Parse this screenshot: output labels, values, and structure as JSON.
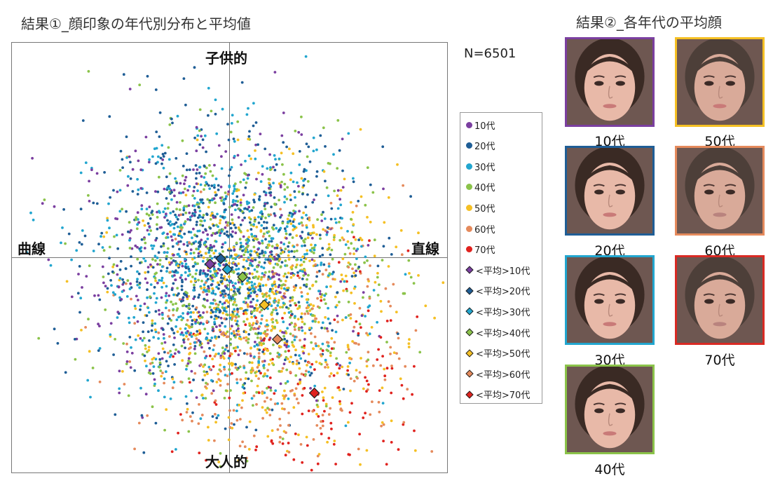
{
  "header": {
    "title_left": "結果①_顔印象の年代別分布と平均値",
    "title_right": "結果②_各年代の平均顔",
    "n_label": "N=6501"
  },
  "chart_data": {
    "type": "scatter",
    "axes": {
      "top": "子供的",
      "bottom": "大人的",
      "left": "曲線",
      "right": "直線",
      "xlim": [
        -1,
        1
      ],
      "ylim": [
        -1,
        1
      ]
    },
    "grid": false,
    "legend_position": "right",
    "series": [
      {
        "name": "10代",
        "color": "#7B3FA0",
        "mean": [
          -0.09,
          -0.03
        ]
      },
      {
        "name": "20代",
        "color": "#1F5E96",
        "mean": [
          -0.04,
          -0.005
        ]
      },
      {
        "name": "30代",
        "color": "#22A6CF",
        "mean": [
          -0.01,
          -0.055
        ]
      },
      {
        "name": "40代",
        "color": "#8BC34A",
        "mean": [
          0.06,
          -0.09
        ]
      },
      {
        "name": "50代",
        "color": "#F5C024",
        "mean": [
          0.16,
          -0.22
        ]
      },
      {
        "name": "60代",
        "color": "#E58A5C",
        "mean": [
          0.22,
          -0.38
        ]
      },
      {
        "name": "70代",
        "color": "#E0221E",
        "mean": [
          0.39,
          -0.63
        ]
      }
    ],
    "legend": [
      {
        "label": "10代",
        "marker": "dot",
        "color": "#7B3FA0"
      },
      {
        "label": "20代",
        "marker": "dot",
        "color": "#1F5E96"
      },
      {
        "label": "30代",
        "marker": "dot",
        "color": "#22A6CF"
      },
      {
        "label": "40代",
        "marker": "dot",
        "color": "#8BC34A"
      },
      {
        "label": "50代",
        "marker": "dot",
        "color": "#F5C024"
      },
      {
        "label": "60代",
        "marker": "dot",
        "color": "#E58A5C"
      },
      {
        "label": "70代",
        "marker": "dot",
        "color": "#E0221E"
      },
      {
        "label": "<平均>10代",
        "marker": "diamond",
        "color": "#7B3FA0"
      },
      {
        "label": "<平均>20代",
        "marker": "diamond",
        "color": "#1F5E96"
      },
      {
        "label": "<平均>30代",
        "marker": "diamond",
        "color": "#22A6CF"
      },
      {
        "label": "<平均>40代",
        "marker": "diamond",
        "color": "#8BC34A"
      },
      {
        "label": "<平均>50代",
        "marker": "diamond",
        "color": "#F5C024"
      },
      {
        "label": "<平均>60代",
        "marker": "diamond",
        "color": "#E58A5C"
      },
      {
        "label": "<平均>70代",
        "marker": "diamond",
        "color": "#E0221E"
      }
    ]
  },
  "faces": [
    {
      "label": "10代",
      "frame": "#7B3FA0"
    },
    {
      "label": "20代",
      "frame": "#1F5E96"
    },
    {
      "label": "30代",
      "frame": "#22A6CF"
    },
    {
      "label": "40代",
      "frame": "#8BC34A"
    },
    {
      "label": "50代",
      "frame": "#F5C024"
    },
    {
      "label": "60代",
      "frame": "#E58A5C"
    },
    {
      "label": "70代",
      "frame": "#D92A24"
    }
  ]
}
